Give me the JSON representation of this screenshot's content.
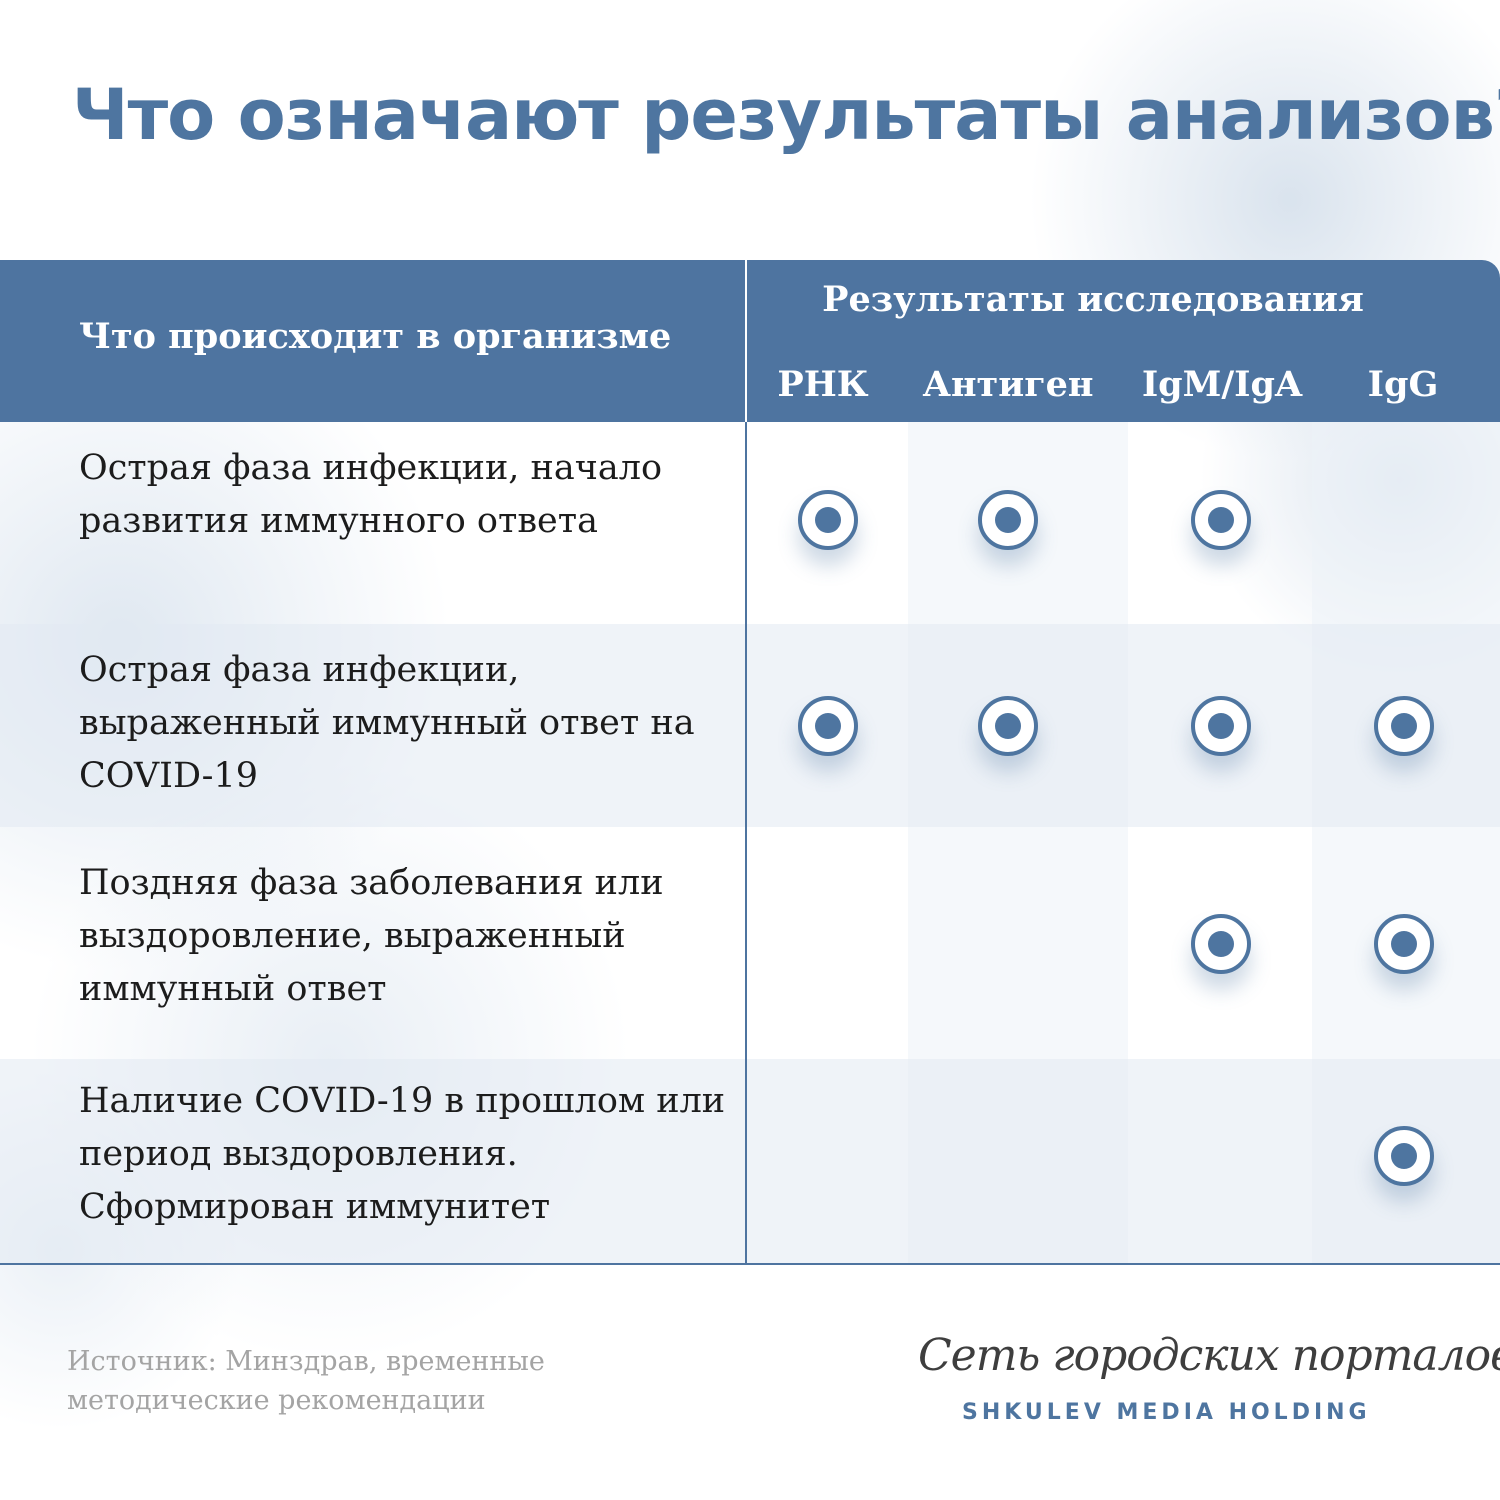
{
  "title": "Что означают результаты анализов?",
  "table": {
    "left_header": "Что происходит в организме",
    "right_header": "Результаты исследования",
    "columns": [
      "РНК",
      "Антиген",
      "IgM/IgA",
      "IgG"
    ],
    "rows": [
      {
        "text": "Острая фаза инфекции, начало развития иммунного ответа",
        "marks": [
          true,
          true,
          true,
          false
        ]
      },
      {
        "text": "Острая фаза инфекции, выраженный иммунный ответ на COVID-19",
        "marks": [
          true,
          true,
          true,
          true
        ]
      },
      {
        "text": "Поздняя фаза заболевания или выздоровление, выраженный иммунный ответ",
        "marks": [
          false,
          false,
          true,
          true
        ]
      },
      {
        "text": "Наличие COVID-19 в прошлом или период выздоровления. Сформирован иммунитет",
        "marks": [
          false,
          false,
          false,
          true
        ]
      }
    ]
  },
  "footer": {
    "source": "Источник: Минздрав, временные методические рекомендации",
    "brand_line1": "Сеть городских порталов",
    "brand_line2": "SHKULEV MEDIA HOLDING"
  },
  "colors": {
    "accent": "#4e75a0"
  }
}
